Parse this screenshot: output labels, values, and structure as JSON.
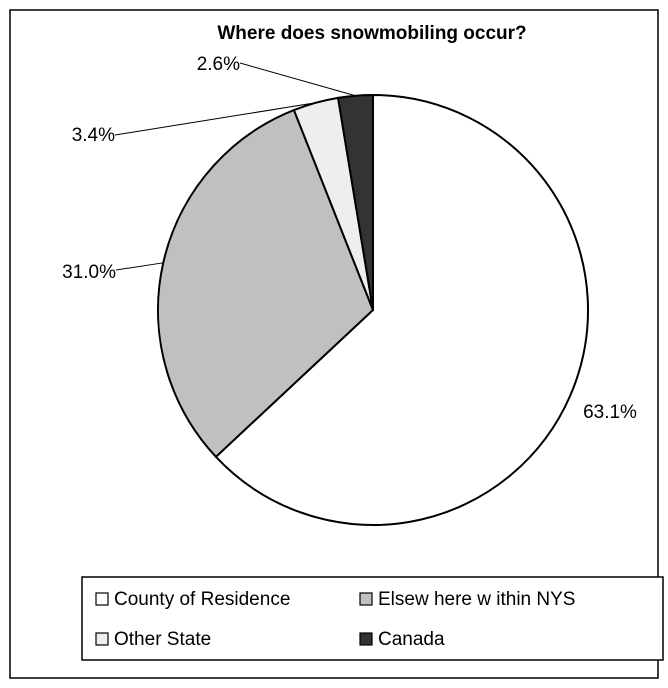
{
  "chart_data": {
    "type": "pie",
    "title": "Where does snowmobiling occur?",
    "categories": [
      "County of Residence",
      "Elsewhere within NYS",
      "Other State",
      "Canada"
    ],
    "values": [
      63.1,
      31.0,
      3.4,
      2.6
    ],
    "labels": [
      "63.1%",
      "31.0%",
      "3.4%",
      "2.6%"
    ],
    "legend_labels": [
      "County of Residence",
      "Elsew here w ithin NYS",
      "Other State",
      "Canada"
    ],
    "colors": [
      "#ffffff",
      "#c0c0c0",
      "#eeeeee",
      "#333333"
    ],
    "legend_position": "bottom",
    "start_angle": "top",
    "direction": "clockwise"
  }
}
